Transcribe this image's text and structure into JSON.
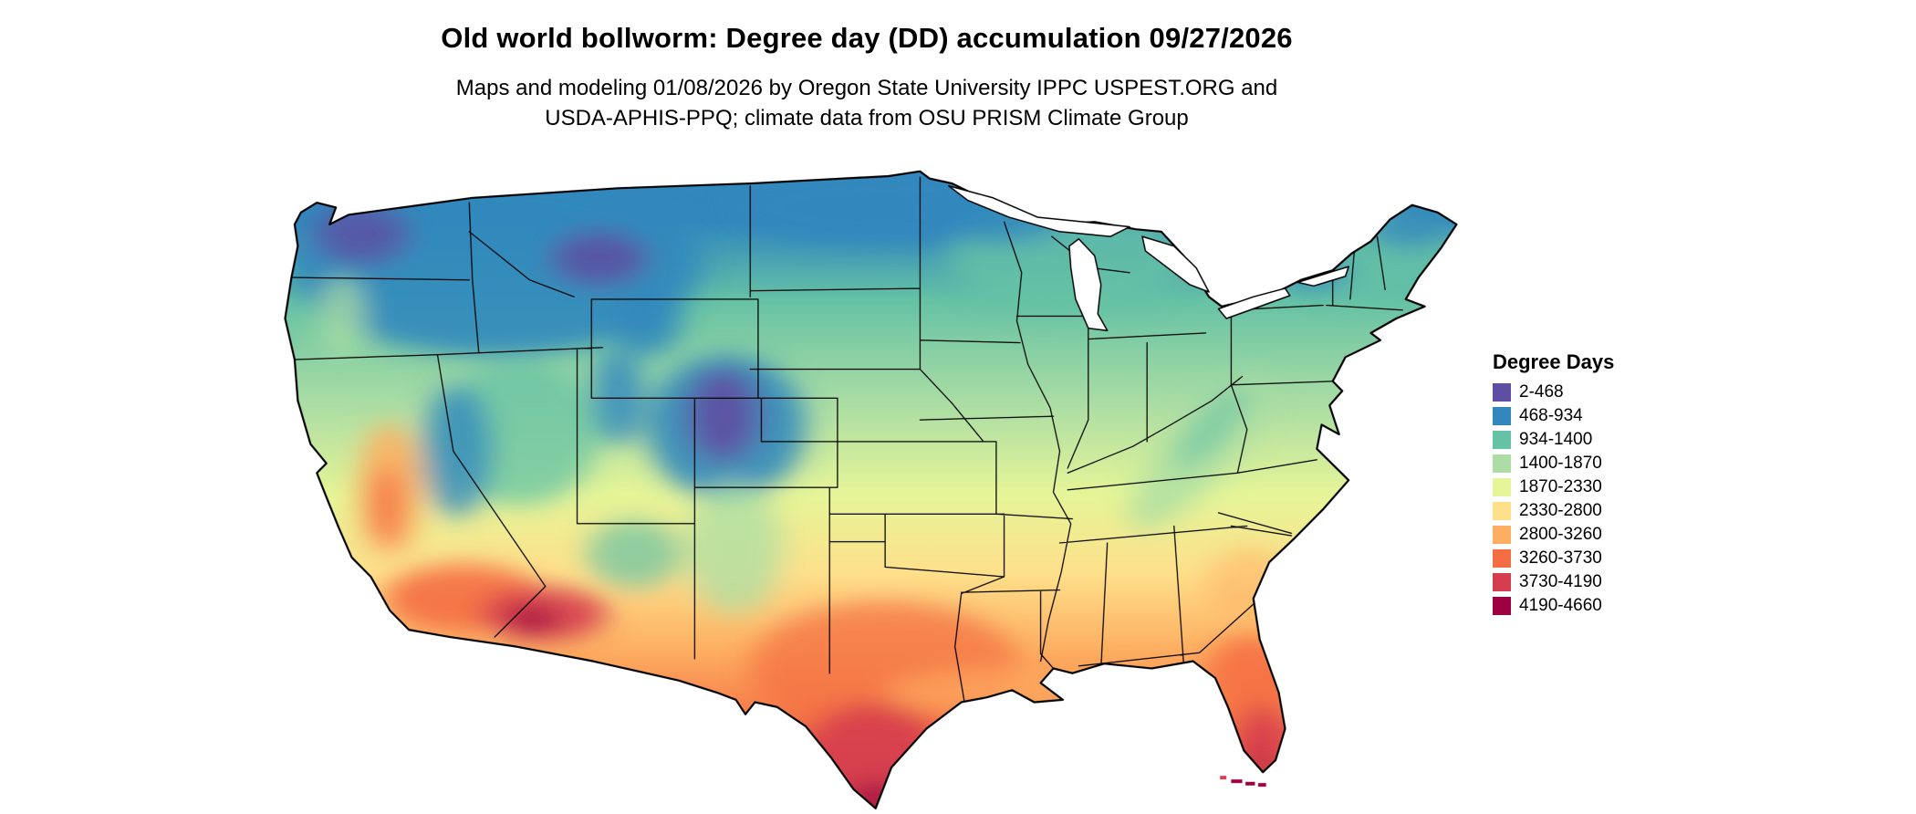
{
  "header": {
    "title": "Old world bollworm: Degree day (DD) accumulation 09/27/2026",
    "subtitle_line1": "Maps and modeling 01/08/2026 by Oregon State University IPPC USPEST.ORG and",
    "subtitle_line2": "USDA-APHIS-PPQ; climate data from OSU PRISM Climate Group"
  },
  "legend": {
    "title": "Degree Days",
    "entries": [
      {
        "label": "2-468",
        "color": "#5e4fa2"
      },
      {
        "label": "468-934",
        "color": "#3288bd"
      },
      {
        "label": "934-1400",
        "color": "#66c2a5"
      },
      {
        "label": "1400-1870",
        "color": "#abdda4"
      },
      {
        "label": "1870-2330",
        "color": "#e6f598"
      },
      {
        "label": "2330-2800",
        "color": "#fee08b"
      },
      {
        "label": "2800-3260",
        "color": "#fdae61"
      },
      {
        "label": "3260-3730",
        "color": "#f46d43"
      },
      {
        "label": "3730-4190",
        "color": "#d53e4f"
      },
      {
        "label": "4190-4660",
        "color": "#9e0142"
      }
    ]
  },
  "map": {
    "region": "Continental United States",
    "description": "Raster degree-day accumulation map; cool (purple/blue) in northern states and mountain ranges, warm (orange/red) across the southern states, hottest in southern Arizona, south Texas and south Florida"
  },
  "chart_data": {
    "type": "heatmap",
    "title": "Old world bollworm: Degree day (DD) accumulation 09/27/2026",
    "legend_title": "Degree Days",
    "units": "degree days (DD)",
    "map_date": "09/27/2026",
    "modeling_date": "01/08/2026",
    "region": "Continental United States",
    "legend_position": "right",
    "classes": [
      {
        "range": "2-468",
        "color": "#5e4fa2"
      },
      {
        "range": "468-934",
        "color": "#3288bd"
      },
      {
        "range": "934-1400",
        "color": "#66c2a5"
      },
      {
        "range": "1400-1870",
        "color": "#abdda4"
      },
      {
        "range": "1870-2330",
        "color": "#e6f598"
      },
      {
        "range": "2330-2800",
        "color": "#fee08b"
      },
      {
        "range": "2800-3260",
        "color": "#fdae61"
      },
      {
        "range": "3260-3730",
        "color": "#f46d43"
      },
      {
        "range": "3730-4190",
        "color": "#d53e4f"
      },
      {
        "range": "4190-4660",
        "color": "#9e0142"
      }
    ]
  }
}
